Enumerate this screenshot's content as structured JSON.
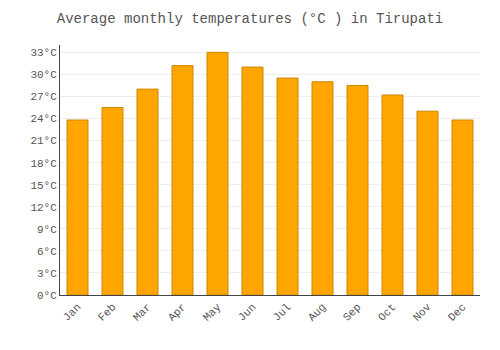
{
  "chart_data": {
    "type": "bar",
    "title": "Average monthly temperatures (°C ) in Tirupati",
    "categories": [
      "Jan",
      "Feb",
      "Mar",
      "Apr",
      "May",
      "Jun",
      "Jul",
      "Aug",
      "Sep",
      "Oct",
      "Nov",
      "Dec"
    ],
    "values": [
      23.8,
      25.5,
      28.0,
      31.2,
      33.0,
      31.0,
      29.5,
      29.0,
      28.5,
      27.2,
      25.0,
      23.8
    ],
    "color": "#FFA500",
    "ylim": [
      0,
      34
    ],
    "yticks": [
      {
        "value": 0,
        "label": "0°C"
      },
      {
        "value": 3,
        "label": "3°C"
      },
      {
        "value": 6,
        "label": "6°C"
      },
      {
        "value": 9,
        "label": "9°C"
      },
      {
        "value": 12,
        "label": "12°C"
      },
      {
        "value": 15,
        "label": "15°C"
      },
      {
        "value": 18,
        "label": "18°C"
      },
      {
        "value": 21,
        "label": "21°C"
      },
      {
        "value": 24,
        "label": "24°C"
      },
      {
        "value": 27,
        "label": "27°C"
      },
      {
        "value": 30,
        "label": "30°C"
      },
      {
        "value": 33,
        "label": "33°C"
      }
    ],
    "grid": true
  }
}
